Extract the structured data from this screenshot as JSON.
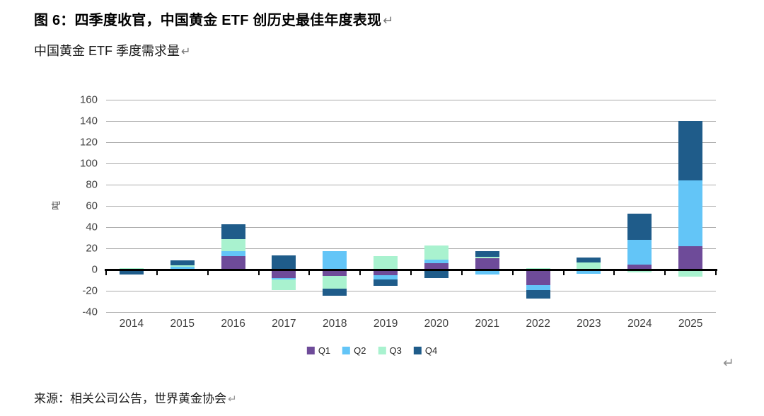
{
  "figure": {
    "title": "图 6：四季度收官，中国黄金 ETF 创历史最佳年度表现",
    "subtitle": "中国黄金 ETF 季度需求量",
    "source": "来源：相关公司公告，世界黄金协会",
    "return_mark": "↵"
  },
  "chart_data": {
    "type": "bar",
    "stacked": true,
    "title": "中国黄金 ETF 季度需求量",
    "xlabel": "",
    "ylabel": "吨",
    "ylim": [
      -40,
      160
    ],
    "ytick_step": 20,
    "grid": true,
    "legend_position": "bottom",
    "categories": [
      "2014",
      "2015",
      "2016",
      "2017",
      "2018",
      "2019",
      "2020",
      "2021",
      "2022",
      "2023",
      "2024",
      "2025"
    ],
    "series": [
      {
        "name": "Q1",
        "color": "#6E4B99",
        "values": [
          0,
          0.5,
          12.5,
          -8,
          -6,
          -5,
          6,
          10.5,
          -14.5,
          0,
          4.5,
          22
        ]
      },
      {
        "name": "Q2",
        "color": "#63C5F7",
        "values": [
          0,
          2,
          5,
          -1.5,
          17.5,
          -4.5,
          3.5,
          -4.5,
          -5,
          -4,
          23.5,
          62
        ]
      },
      {
        "name": "Q3",
        "color": "#A9F2CF",
        "values": [
          1.5,
          1.5,
          11,
          -10,
          -12,
          12.5,
          13,
          1.5,
          1.5,
          7,
          -2.5,
          -6.5
        ]
      },
      {
        "name": "Q4",
        "color": "#1F5C8A",
        "values": [
          -4.5,
          5,
          14,
          13.5,
          -6.5,
          -6,
          -8,
          5.5,
          -8,
          4.5,
          25,
          56
        ]
      }
    ]
  }
}
